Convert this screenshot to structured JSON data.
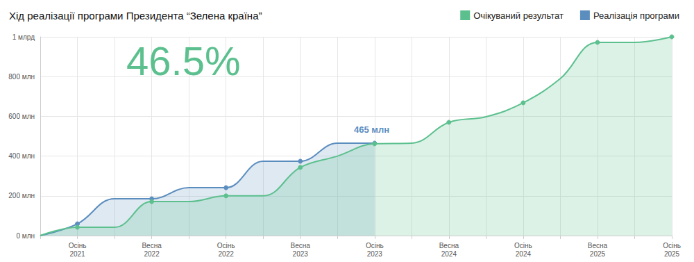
{
  "chart_data": {
    "type": "line",
    "title": "Хід реалізації програми Президента “Зелена країна”",
    "categories": [
      null,
      "Осінь\n2021",
      null,
      "Весна\n2022",
      null,
      "Осінь\n2022",
      null,
      "Весна\n2023",
      null,
      "Осінь\n2023",
      null,
      "Весна\n2024",
      null,
      "Осінь\n2024",
      null,
      "Весна\n2025",
      null,
      "Осінь\n2025"
    ],
    "series": [
      {
        "name": "Очікуваний результат",
        "color": "#5cc08e",
        "marker": "circle",
        "values": [
          0,
          42,
          42,
          171,
          171,
          200,
          200,
          343,
          400,
          462,
          465,
          570,
          598,
          668,
          790,
          972,
          972,
          1000
        ]
      },
      {
        "name": "Реалізація програми",
        "color": "#5b8dbf",
        "marker": "circle",
        "values": [
          0,
          59,
          185,
          185,
          241,
          241,
          374,
          374,
          465,
          465,
          null,
          null,
          null,
          null,
          null,
          null,
          null,
          null
        ]
      }
    ],
    "ylim": [
      0,
      1000
    ],
    "yticks": [
      {
        "value": 0,
        "label": "0 млн"
      },
      {
        "value": 200,
        "label": "200 млн"
      },
      {
        "value": 400,
        "label": "400 млн"
      },
      {
        "value": 600,
        "label": "600 млн"
      },
      {
        "value": 800,
        "label": "800 млн"
      },
      {
        "value": 1000,
        "label": "1 млрд"
      }
    ],
    "annotations": [
      "46.5%",
      "465 млн"
    ],
    "grid": true,
    "legend": "top-right"
  }
}
